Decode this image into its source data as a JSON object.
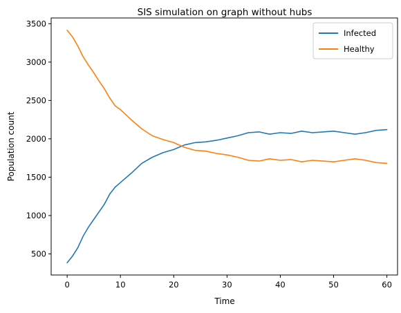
{
  "chart_data": {
    "type": "line",
    "title": "SIS simulation on graph without hubs",
    "xlabel": "Time",
    "ylabel": "Population count",
    "xlim": [
      -3,
      62
    ],
    "ylim": [
      225,
      3575
    ],
    "xticks": [
      0,
      10,
      20,
      30,
      40,
      50,
      60
    ],
    "yticks": [
      500,
      1000,
      1500,
      2000,
      2500,
      3000,
      3500
    ],
    "legend_position": "top-right",
    "grid": false,
    "series": [
      {
        "name": "Infected",
        "color": "#1f77b4",
        "x": [
          0,
          1,
          2,
          3,
          4,
          5,
          6,
          7,
          8,
          9,
          10,
          12,
          14,
          16,
          18,
          20,
          22,
          24,
          26,
          28,
          30,
          32,
          34,
          36,
          38,
          40,
          42,
          44,
          46,
          48,
          50,
          52,
          54,
          56,
          58,
          60
        ],
        "values": [
          385,
          470,
          580,
          730,
          850,
          950,
          1050,
          1150,
          1280,
          1370,
          1430,
          1550,
          1680,
          1760,
          1820,
          1860,
          1920,
          1950,
          1960,
          1980,
          2010,
          2040,
          2080,
          2090,
          2060,
          2080,
          2070,
          2100,
          2080,
          2090,
          2100,
          2080,
          2060,
          2080,
          2110,
          2120
        ]
      },
      {
        "name": "Healthy",
        "color": "#ff7f0e",
        "x": [
          0,
          1,
          2,
          3,
          4,
          5,
          6,
          7,
          8,
          9,
          10,
          12,
          14,
          16,
          18,
          20,
          22,
          24,
          26,
          28,
          30,
          32,
          34,
          36,
          38,
          40,
          42,
          44,
          46,
          48,
          50,
          52,
          54,
          56,
          58,
          60
        ],
        "values": [
          3415,
          3330,
          3210,
          3070,
          2960,
          2860,
          2750,
          2650,
          2530,
          2430,
          2380,
          2250,
          2130,
          2040,
          1990,
          1950,
          1890,
          1850,
          1840,
          1810,
          1790,
          1760,
          1720,
          1710,
          1740,
          1720,
          1730,
          1700,
          1720,
          1710,
          1700,
          1720,
          1740,
          1720,
          1690,
          1680
        ]
      }
    ]
  }
}
